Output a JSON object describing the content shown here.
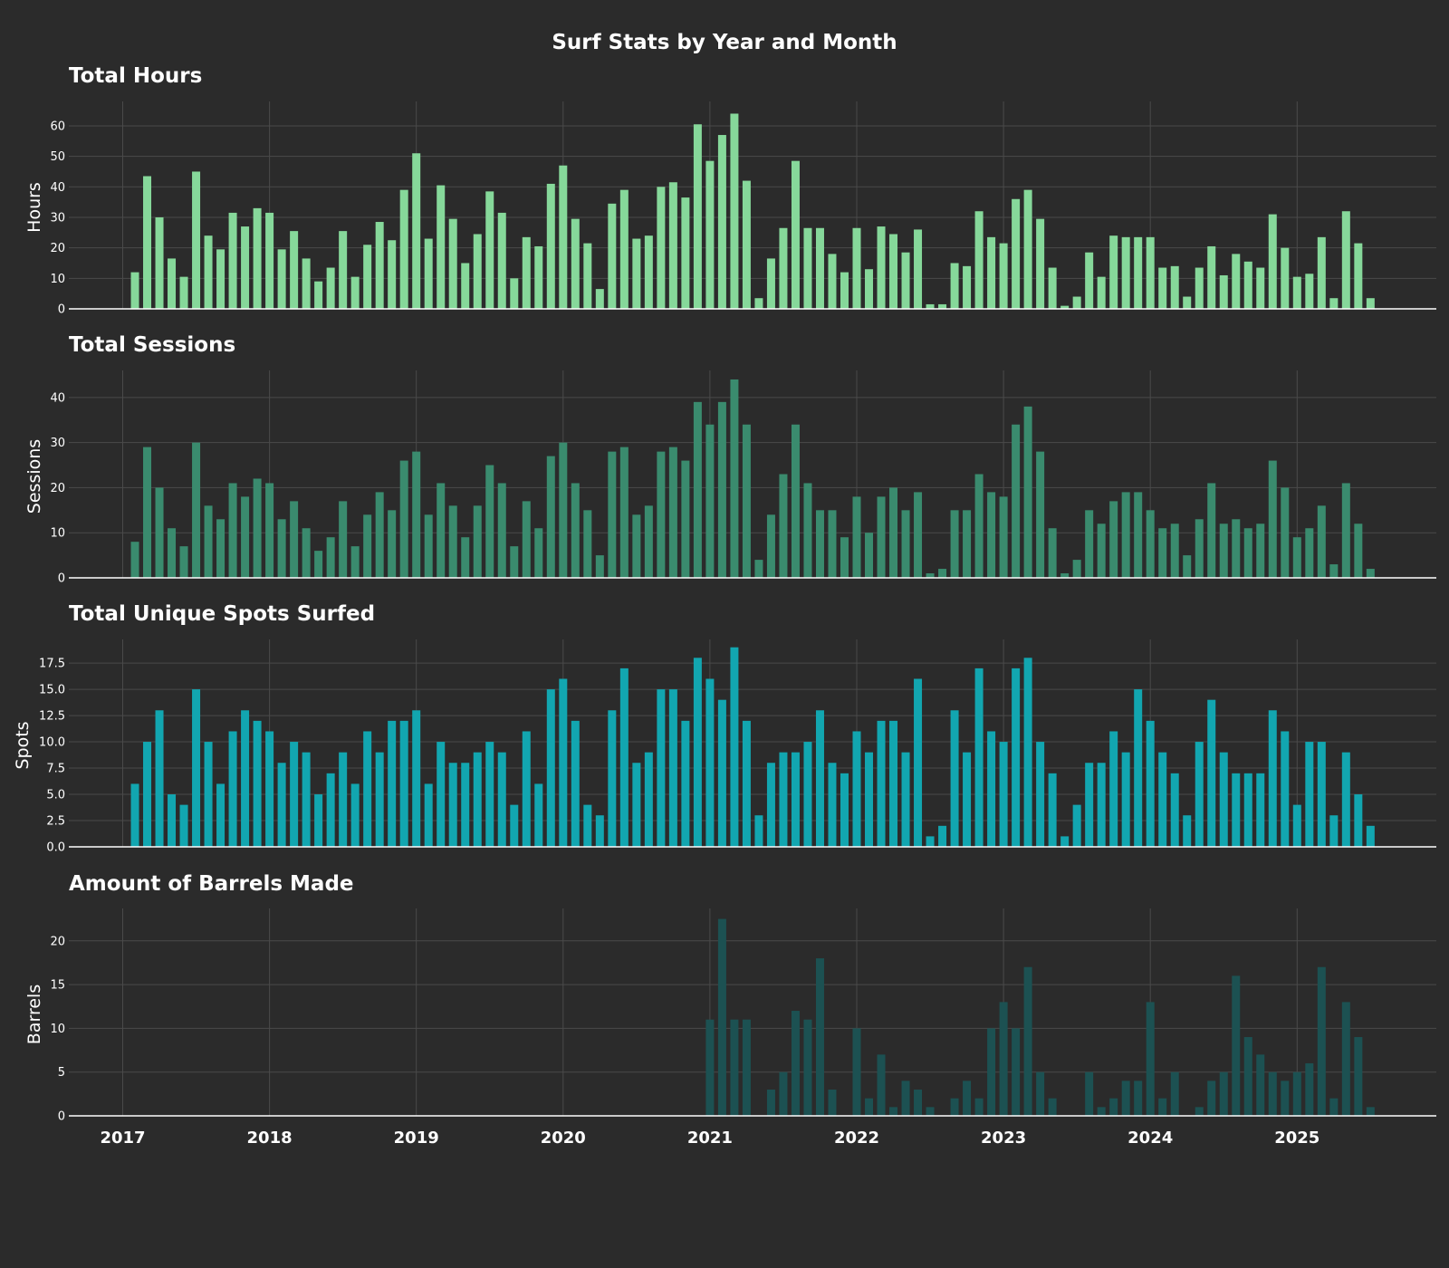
{
  "chart_data": {
    "title": "Surf Stats by Year and Month",
    "type": "bar",
    "x_axis": {
      "type": "date-monthly",
      "tick_labels": [
        "2017",
        "2018",
        "2019",
        "2020",
        "2021",
        "2022",
        "2023",
        "2024",
        "2025"
      ],
      "first_month": "2017-02",
      "last_month": "2025-07"
    },
    "grid": true,
    "background_color": "#2b2b2b",
    "panels": [
      {
        "id": "hours",
        "title": "Total Hours",
        "ylabel": "Hours",
        "color": "#86d89a",
        "ylim": [
          0,
          68
        ],
        "yticks": [
          0,
          10,
          20,
          30,
          40,
          50,
          60
        ],
        "ytick_labels": [
          "0",
          "10",
          "20",
          "30",
          "40",
          "50",
          "60"
        ],
        "values": [
          12,
          43.5,
          30,
          16.5,
          10.5,
          45,
          24,
          19.5,
          31.5,
          27,
          33,
          31.5,
          19.5,
          25.5,
          16.5,
          9,
          13.5,
          25.5,
          10.5,
          21,
          28.5,
          22.5,
          39,
          51,
          23,
          40.5,
          29.5,
          15,
          24.5,
          38.5,
          31.5,
          10,
          23.5,
          20.5,
          41,
          47,
          29.5,
          21.5,
          6.5,
          34.5,
          39,
          23,
          24,
          40,
          41.5,
          36.5,
          60.5,
          48.5,
          57,
          64,
          42,
          3.5,
          16.5,
          26.5,
          48.5,
          26.5,
          26.5,
          18,
          12,
          26.5,
          13,
          27,
          24.5,
          18.5,
          26,
          1.5,
          1.5,
          15,
          14,
          32,
          23.5,
          21.5,
          36,
          39,
          29.5,
          13.5,
          1,
          4,
          18.5,
          10.5,
          24,
          23.5,
          23.5,
          23.5,
          13.5,
          14,
          4,
          13.5,
          20.5,
          11,
          18,
          15.5,
          13.5,
          31,
          20,
          10.5,
          11.5,
          23.5,
          3.5,
          32,
          21.5,
          3.5
        ]
      },
      {
        "id": "sessions",
        "title": "Total Sessions",
        "ylabel": "Sessions",
        "color": "#3a8b6e",
        "ylim": [
          0,
          46
        ],
        "yticks": [
          0,
          10,
          20,
          30,
          40
        ],
        "ytick_labels": [
          "0",
          "10",
          "20",
          "30",
          "40"
        ],
        "values": [
          8,
          29,
          20,
          11,
          7,
          30,
          16,
          13,
          21,
          18,
          22,
          21,
          13,
          17,
          11,
          6,
          9,
          17,
          7,
          14,
          19,
          15,
          26,
          28,
          14,
          21,
          16,
          9,
          16,
          25,
          21,
          7,
          17,
          11,
          27,
          30,
          21,
          15,
          5,
          28,
          29,
          14,
          16,
          28,
          29,
          26,
          39,
          34,
          39,
          44,
          34,
          4,
          14,
          23,
          34,
          21,
          15,
          15,
          9,
          18,
          10,
          18,
          20,
          15,
          19,
          1,
          2,
          15,
          15,
          23,
          19,
          18,
          34,
          38,
          28,
          11,
          1,
          4,
          15,
          12,
          17,
          19,
          19,
          15,
          11,
          12,
          5,
          13,
          21,
          12,
          13,
          11,
          12,
          26,
          20,
          9,
          11,
          16,
          3,
          21,
          12,
          2
        ]
      },
      {
        "id": "spots",
        "title": "Total Unique Spots Surfed",
        "ylabel": "Spots",
        "color": "#12a6b0",
        "ylim": [
          0,
          19.75
        ],
        "yticks": [
          0,
          2.5,
          5,
          7.5,
          10,
          12.5,
          15,
          17.5
        ],
        "ytick_labels": [
          "0.0",
          "2.5",
          "5.0",
          "7.5",
          "10.0",
          "12.5",
          "15.0",
          "17.5"
        ],
        "values": [
          6,
          10,
          13,
          5,
          4,
          15,
          10,
          6,
          11,
          13,
          12,
          11,
          8,
          10,
          9,
          5,
          7,
          9,
          6,
          11,
          9,
          12,
          12,
          13,
          6,
          10,
          8,
          8,
          9,
          10,
          9,
          4,
          11,
          6,
          15,
          16,
          12,
          4,
          3,
          13,
          17,
          8,
          9,
          15,
          15,
          12,
          18,
          16,
          14,
          19,
          12,
          3,
          8,
          9,
          9,
          10,
          13,
          8,
          7,
          11,
          9,
          12,
          12,
          9,
          16,
          1,
          2,
          13,
          9,
          17,
          11,
          10,
          17,
          18,
          10,
          7,
          1,
          4,
          8,
          8,
          11,
          9,
          15,
          12,
          9,
          7,
          3,
          10,
          14,
          9,
          7,
          7,
          7,
          13,
          11,
          4,
          10,
          10,
          3,
          9,
          5,
          2
        ]
      },
      {
        "id": "barrels",
        "title": "Amount of Barrels Made",
        "ylabel": "Barrels",
        "color": "#1c5152",
        "ylim": [
          0,
          23.7
        ],
        "yticks": [
          0,
          5,
          10,
          15,
          20
        ],
        "ytick_labels": [
          "0",
          "5",
          "10",
          "15",
          "20"
        ],
        "values": [
          0,
          0,
          0,
          0,
          0,
          0,
          0,
          0,
          0,
          0,
          0,
          0,
          0,
          0,
          0,
          0,
          0,
          0,
          0,
          0,
          0,
          0,
          0,
          0,
          0,
          0,
          0,
          0,
          0,
          0,
          0,
          0,
          0,
          0,
          0,
          0,
          0,
          0,
          0,
          0,
          0,
          0,
          0,
          0,
          0,
          0,
          0,
          11,
          22.5,
          11,
          11,
          0,
          3,
          5,
          12,
          11,
          18,
          3,
          0,
          10,
          2,
          7,
          1,
          4,
          3,
          1,
          0,
          2,
          4,
          2,
          10,
          13,
          10,
          17,
          5,
          2,
          0,
          0,
          5,
          1,
          2,
          4,
          4,
          13,
          2,
          5,
          0,
          1,
          4,
          5,
          16,
          9,
          7,
          5,
          4,
          5,
          6,
          17,
          2,
          13,
          9,
          1
        ]
      }
    ]
  }
}
